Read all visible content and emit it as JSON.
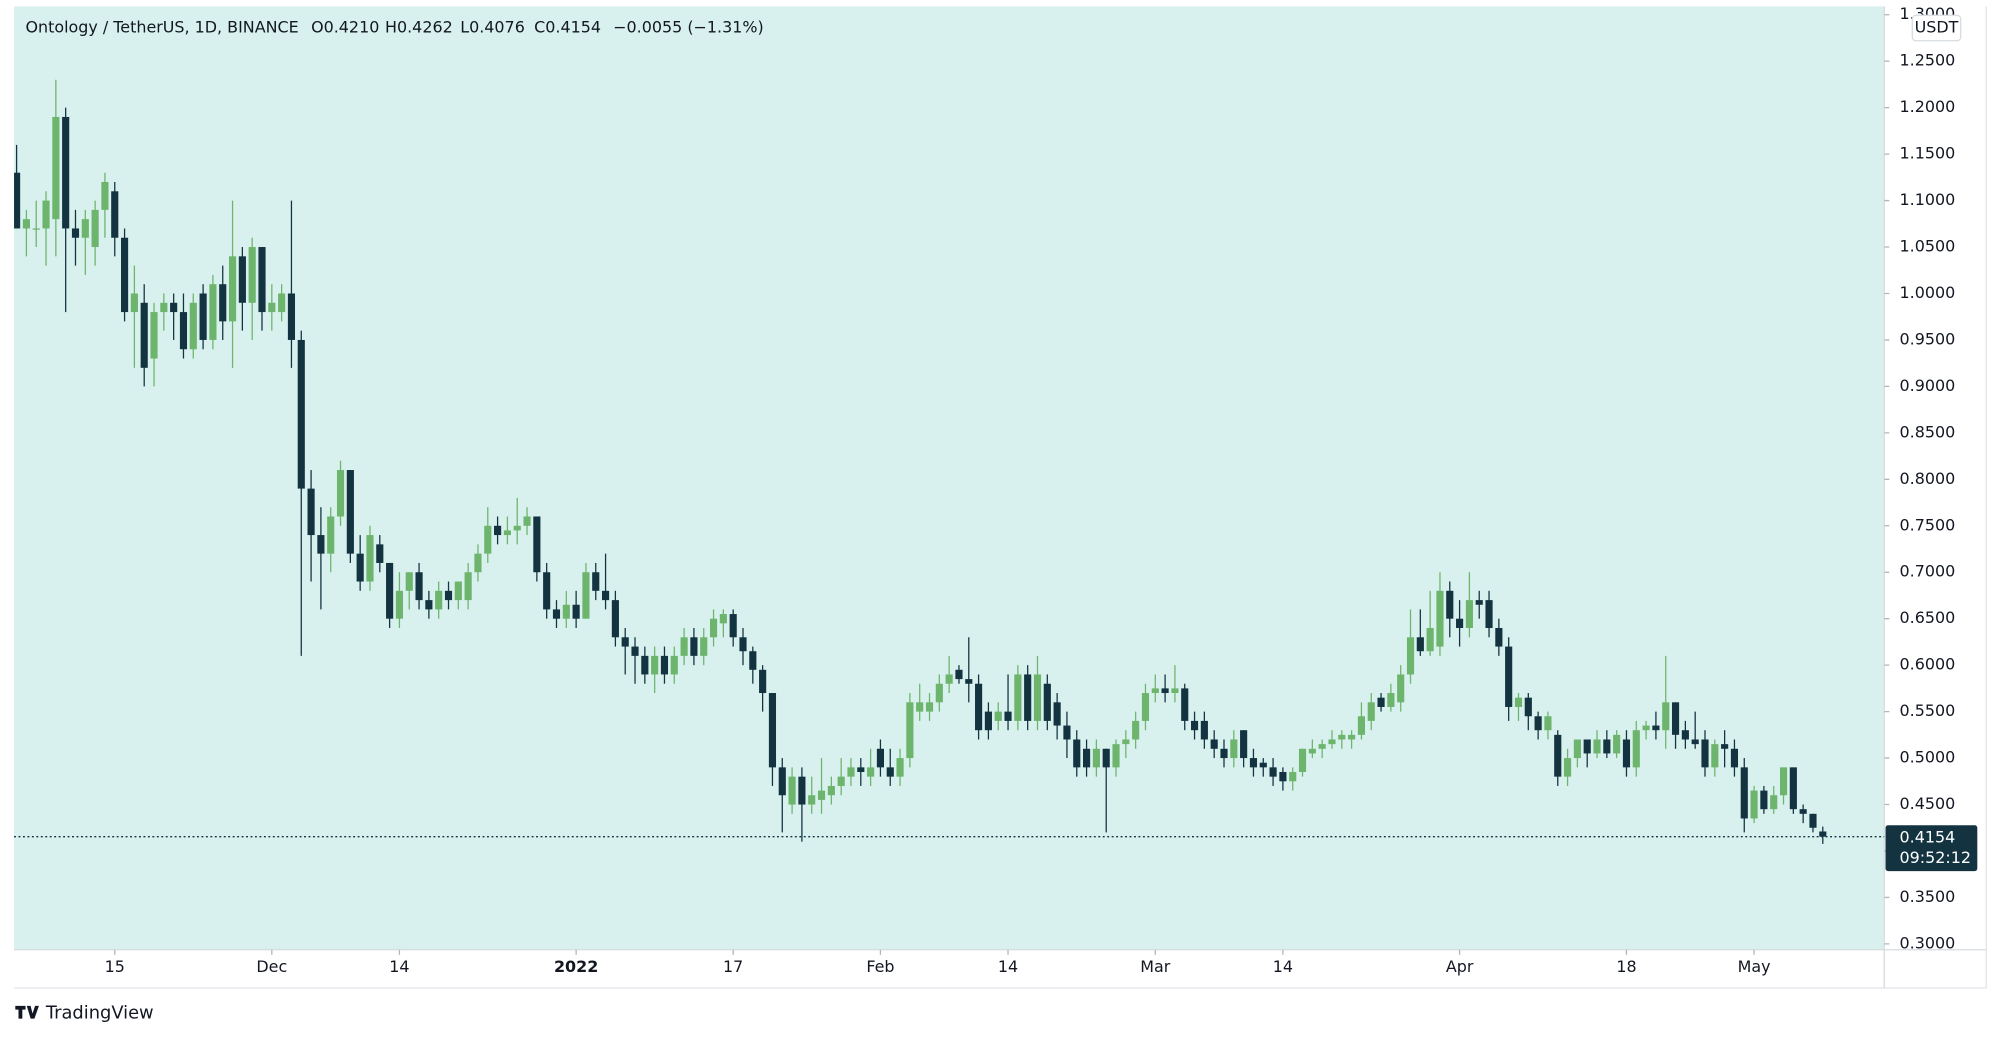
{
  "chart_data": {
    "type": "candlestick",
    "header": {
      "symbol": "Ontology / TetherUS, 1D, BINANCE",
      "open": "O0.4210",
      "high": "H0.4262",
      "low": "L0.4076",
      "close": "C0.4154",
      "change": "−0.0055 (−1.31%)"
    },
    "currency": "USDT",
    "last_price": 0.4154,
    "countdown": "09:52:12",
    "brand": "TradingView",
    "up_color": "#6db56c",
    "down_color": "#143341",
    "background": "#d8f1ee",
    "grid": false,
    "ylim": [
      0.2937,
      1.309
    ],
    "yticks": [
      {
        "value": 0.3,
        "label": "0.3000"
      },
      {
        "value": 0.35,
        "label": "0.3500"
      },
      {
        "value": 0.4,
        "label": "0.4000"
      },
      {
        "value": 0.45,
        "label": "0.4500"
      },
      {
        "value": 0.5,
        "label": "0.5000"
      },
      {
        "value": 0.55,
        "label": "0.5500"
      },
      {
        "value": 0.6,
        "label": "0.6000"
      },
      {
        "value": 0.65,
        "label": "0.6500"
      },
      {
        "value": 0.7,
        "label": "0.7000"
      },
      {
        "value": 0.75,
        "label": "0.7500"
      },
      {
        "value": 0.8,
        "label": "0.8000"
      },
      {
        "value": 0.85,
        "label": "0.8500"
      },
      {
        "value": 0.9,
        "label": "0.9000"
      },
      {
        "value": 0.95,
        "label": "0.9500"
      },
      {
        "value": 1.0,
        "label": "1.0000"
      },
      {
        "value": 1.05,
        "label": "1.0500"
      },
      {
        "value": 1.1,
        "label": "1.1000"
      },
      {
        "value": 1.15,
        "label": "1.1500"
      },
      {
        "value": 1.2,
        "label": "1.2000"
      },
      {
        "value": 1.25,
        "label": "1.2500"
      },
      {
        "value": 1.3,
        "label": "1.3000"
      }
    ],
    "xticks": [
      {
        "value": 10,
        "label": "15"
      },
      {
        "value": 26,
        "label": "Dec"
      },
      {
        "value": 39,
        "label": "14"
      },
      {
        "value": 57,
        "label": "2022"
      },
      {
        "value": 73,
        "label": "17"
      },
      {
        "value": 88,
        "label": "Feb"
      },
      {
        "value": 101,
        "label": "14"
      },
      {
        "value": 116,
        "label": "Mar"
      },
      {
        "value": 129,
        "label": "14"
      },
      {
        "value": 147,
        "label": "Apr"
      },
      {
        "value": 164,
        "label": "18"
      },
      {
        "value": 177,
        "label": "May"
      }
    ],
    "candles": [
      [
        1.13,
        1.16,
        1.07,
        1.07
      ],
      [
        1.07,
        1.09,
        1.04,
        1.08
      ],
      [
        1.07,
        1.1,
        1.05,
        1.07
      ],
      [
        1.07,
        1.11,
        1.03,
        1.1
      ],
      [
        1.08,
        1.23,
        1.04,
        1.19
      ],
      [
        1.19,
        1.2,
        0.98,
        1.07
      ],
      [
        1.07,
        1.09,
        1.03,
        1.06
      ],
      [
        1.06,
        1.09,
        1.02,
        1.08
      ],
      [
        1.05,
        1.1,
        1.03,
        1.09
      ],
      [
        1.09,
        1.13,
        1.06,
        1.12
      ],
      [
        1.11,
        1.12,
        1.04,
        1.06
      ],
      [
        1.06,
        1.07,
        0.97,
        0.98
      ],
      [
        0.98,
        1.03,
        0.92,
        1.0
      ],
      [
        0.99,
        1.01,
        0.9,
        0.92
      ],
      [
        0.93,
        0.99,
        0.9,
        0.98
      ],
      [
        0.98,
        1.0,
        0.96,
        0.99
      ],
      [
        0.99,
        1.0,
        0.95,
        0.98
      ],
      [
        0.98,
        1.0,
        0.93,
        0.94
      ],
      [
        0.94,
        1.0,
        0.93,
        0.99
      ],
      [
        1.0,
        1.01,
        0.94,
        0.95
      ],
      [
        0.95,
        1.02,
        0.94,
        1.01
      ],
      [
        1.01,
        1.03,
        0.95,
        0.97
      ],
      [
        0.97,
        1.1,
        0.92,
        1.04
      ],
      [
        1.04,
        1.05,
        0.96,
        0.99
      ],
      [
        0.99,
        1.06,
        0.95,
        1.05
      ],
      [
        1.05,
        1.05,
        0.96,
        0.98
      ],
      [
        0.98,
        1.01,
        0.96,
        0.99
      ],
      [
        0.98,
        1.01,
        0.97,
        1.0
      ],
      [
        1.0,
        1.1,
        0.92,
        0.95
      ],
      [
        0.95,
        0.96,
        0.61,
        0.79
      ],
      [
        0.79,
        0.81,
        0.69,
        0.74
      ],
      [
        0.74,
        0.77,
        0.66,
        0.72
      ],
      [
        0.72,
        0.77,
        0.7,
        0.76
      ],
      [
        0.76,
        0.82,
        0.75,
        0.81
      ],
      [
        0.81,
        0.81,
        0.71,
        0.72
      ],
      [
        0.72,
        0.74,
        0.68,
        0.69
      ],
      [
        0.69,
        0.75,
        0.68,
        0.74
      ],
      [
        0.73,
        0.74,
        0.7,
        0.71
      ],
      [
        0.71,
        0.71,
        0.64,
        0.65
      ],
      [
        0.65,
        0.7,
        0.64,
        0.68
      ],
      [
        0.68,
        0.7,
        0.66,
        0.7
      ],
      [
        0.7,
        0.71,
        0.66,
        0.67
      ],
      [
        0.67,
        0.68,
        0.65,
        0.66
      ],
      [
        0.66,
        0.69,
        0.65,
        0.68
      ],
      [
        0.68,
        0.69,
        0.66,
        0.67
      ],
      [
        0.67,
        0.69,
        0.66,
        0.69
      ],
      [
        0.67,
        0.71,
        0.66,
        0.7
      ],
      [
        0.7,
        0.73,
        0.69,
        0.72
      ],
      [
        0.72,
        0.77,
        0.71,
        0.75
      ],
      [
        0.75,
        0.76,
        0.73,
        0.74
      ],
      [
        0.74,
        0.76,
        0.73,
        0.745
      ],
      [
        0.745,
        0.78,
        0.73,
        0.75
      ],
      [
        0.75,
        0.77,
        0.74,
        0.76
      ],
      [
        0.76,
        0.76,
        0.69,
        0.7
      ],
      [
        0.7,
        0.71,
        0.65,
        0.66
      ],
      [
        0.66,
        0.67,
        0.64,
        0.65
      ],
      [
        0.65,
        0.68,
        0.64,
        0.665
      ],
      [
        0.665,
        0.68,
        0.64,
        0.65
      ],
      [
        0.65,
        0.71,
        0.65,
        0.7
      ],
      [
        0.7,
        0.71,
        0.67,
        0.68
      ],
      [
        0.68,
        0.72,
        0.66,
        0.67
      ],
      [
        0.67,
        0.68,
        0.62,
        0.63
      ],
      [
        0.63,
        0.64,
        0.59,
        0.62
      ],
      [
        0.62,
        0.63,
        0.58,
        0.61
      ],
      [
        0.61,
        0.62,
        0.58,
        0.59
      ],
      [
        0.59,
        0.62,
        0.57,
        0.61
      ],
      [
        0.61,
        0.62,
        0.58,
        0.59
      ],
      [
        0.59,
        0.62,
        0.58,
        0.61
      ],
      [
        0.61,
        0.64,
        0.6,
        0.63
      ],
      [
        0.63,
        0.64,
        0.6,
        0.61
      ],
      [
        0.61,
        0.64,
        0.6,
        0.63
      ],
      [
        0.63,
        0.66,
        0.62,
        0.65
      ],
      [
        0.645,
        0.66,
        0.63,
        0.655
      ],
      [
        0.655,
        0.66,
        0.62,
        0.63
      ],
      [
        0.63,
        0.64,
        0.6,
        0.615
      ],
      [
        0.615,
        0.62,
        0.58,
        0.595
      ],
      [
        0.595,
        0.6,
        0.55,
        0.57
      ],
      [
        0.57,
        0.57,
        0.47,
        0.49
      ],
      [
        0.49,
        0.5,
        0.42,
        0.46
      ],
      [
        0.45,
        0.49,
        0.44,
        0.48
      ],
      [
        0.48,
        0.49,
        0.41,
        0.45
      ],
      [
        0.45,
        0.48,
        0.44,
        0.46
      ],
      [
        0.455,
        0.5,
        0.44,
        0.465
      ],
      [
        0.46,
        0.48,
        0.45,
        0.47
      ],
      [
        0.47,
        0.5,
        0.46,
        0.48
      ],
      [
        0.48,
        0.5,
        0.47,
        0.49
      ],
      [
        0.49,
        0.5,
        0.47,
        0.485
      ],
      [
        0.48,
        0.51,
        0.47,
        0.49
      ],
      [
        0.51,
        0.52,
        0.48,
        0.49
      ],
      [
        0.49,
        0.51,
        0.47,
        0.48
      ],
      [
        0.48,
        0.51,
        0.47,
        0.5
      ],
      [
        0.5,
        0.57,
        0.49,
        0.56
      ],
      [
        0.55,
        0.58,
        0.54,
        0.56
      ],
      [
        0.55,
        0.57,
        0.54,
        0.56
      ],
      [
        0.56,
        0.59,
        0.55,
        0.58
      ],
      [
        0.58,
        0.61,
        0.57,
        0.59
      ],
      [
        0.595,
        0.6,
        0.58,
        0.585
      ],
      [
        0.585,
        0.63,
        0.56,
        0.58
      ],
      [
        0.58,
        0.59,
        0.52,
        0.53
      ],
      [
        0.55,
        0.56,
        0.52,
        0.53
      ],
      [
        0.54,
        0.56,
        0.53,
        0.55
      ],
      [
        0.55,
        0.59,
        0.53,
        0.54
      ],
      [
        0.54,
        0.6,
        0.53,
        0.59
      ],
      [
        0.59,
        0.6,
        0.53,
        0.54
      ],
      [
        0.54,
        0.61,
        0.53,
        0.59
      ],
      [
        0.58,
        0.59,
        0.53,
        0.54
      ],
      [
        0.56,
        0.57,
        0.52,
        0.535
      ],
      [
        0.535,
        0.55,
        0.5,
        0.52
      ],
      [
        0.52,
        0.53,
        0.48,
        0.49
      ],
      [
        0.51,
        0.52,
        0.48,
        0.49
      ],
      [
        0.49,
        0.52,
        0.48,
        0.51
      ],
      [
        0.51,
        0.51,
        0.42,
        0.49
      ],
      [
        0.49,
        0.52,
        0.48,
        0.515
      ],
      [
        0.515,
        0.53,
        0.5,
        0.52
      ],
      [
        0.52,
        0.55,
        0.51,
        0.54
      ],
      [
        0.54,
        0.58,
        0.53,
        0.57
      ],
      [
        0.57,
        0.59,
        0.56,
        0.575
      ],
      [
        0.575,
        0.59,
        0.56,
        0.57
      ],
      [
        0.57,
        0.6,
        0.56,
        0.575
      ],
      [
        0.575,
        0.58,
        0.53,
        0.54
      ],
      [
        0.54,
        0.55,
        0.52,
        0.53
      ],
      [
        0.54,
        0.55,
        0.51,
        0.52
      ],
      [
        0.52,
        0.53,
        0.5,
        0.51
      ],
      [
        0.51,
        0.52,
        0.49,
        0.5
      ],
      [
        0.5,
        0.53,
        0.49,
        0.52
      ],
      [
        0.53,
        0.53,
        0.49,
        0.5
      ],
      [
        0.5,
        0.51,
        0.48,
        0.49
      ],
      [
        0.495,
        0.5,
        0.48,
        0.49
      ],
      [
        0.49,
        0.5,
        0.47,
        0.48
      ],
      [
        0.485,
        0.49,
        0.465,
        0.475
      ],
      [
        0.475,
        0.49,
        0.465,
        0.485
      ],
      [
        0.485,
        0.51,
        0.48,
        0.51
      ],
      [
        0.505,
        0.52,
        0.5,
        0.51
      ],
      [
        0.51,
        0.52,
        0.5,
        0.515
      ],
      [
        0.515,
        0.53,
        0.51,
        0.52
      ],
      [
        0.52,
        0.53,
        0.51,
        0.525
      ],
      [
        0.52,
        0.53,
        0.51,
        0.525
      ],
      [
        0.525,
        0.56,
        0.52,
        0.545
      ],
      [
        0.54,
        0.57,
        0.53,
        0.56
      ],
      [
        0.565,
        0.57,
        0.55,
        0.555
      ],
      [
        0.555,
        0.58,
        0.55,
        0.57
      ],
      [
        0.56,
        0.6,
        0.55,
        0.59
      ],
      [
        0.59,
        0.66,
        0.58,
        0.63
      ],
      [
        0.63,
        0.66,
        0.61,
        0.615
      ],
      [
        0.615,
        0.68,
        0.61,
        0.64
      ],
      [
        0.62,
        0.7,
        0.61,
        0.68
      ],
      [
        0.68,
        0.69,
        0.63,
        0.65
      ],
      [
        0.65,
        0.67,
        0.62,
        0.64
      ],
      [
        0.64,
        0.7,
        0.63,
        0.67
      ],
      [
        0.67,
        0.68,
        0.65,
        0.665
      ],
      [
        0.67,
        0.68,
        0.63,
        0.64
      ],
      [
        0.64,
        0.65,
        0.61,
        0.62
      ],
      [
        0.62,
        0.63,
        0.54,
        0.555
      ],
      [
        0.555,
        0.57,
        0.54,
        0.565
      ],
      [
        0.565,
        0.57,
        0.53,
        0.545
      ],
      [
        0.545,
        0.55,
        0.52,
        0.53
      ],
      [
        0.53,
        0.55,
        0.52,
        0.545
      ],
      [
        0.525,
        0.53,
        0.47,
        0.48
      ],
      [
        0.48,
        0.51,
        0.47,
        0.5
      ],
      [
        0.5,
        0.52,
        0.49,
        0.52
      ],
      [
        0.52,
        0.52,
        0.49,
        0.505
      ],
      [
        0.505,
        0.53,
        0.5,
        0.52
      ],
      [
        0.52,
        0.53,
        0.5,
        0.505
      ],
      [
        0.505,
        0.53,
        0.5,
        0.525
      ],
      [
        0.52,
        0.53,
        0.48,
        0.49
      ],
      [
        0.49,
        0.54,
        0.48,
        0.53
      ],
      [
        0.53,
        0.54,
        0.52,
        0.535
      ],
      [
        0.535,
        0.55,
        0.52,
        0.53
      ],
      [
        0.53,
        0.61,
        0.51,
        0.56
      ],
      [
        0.56,
        0.56,
        0.51,
        0.525
      ],
      [
        0.53,
        0.54,
        0.51,
        0.52
      ],
      [
        0.52,
        0.55,
        0.51,
        0.515
      ],
      [
        0.52,
        0.53,
        0.48,
        0.49
      ],
      [
        0.49,
        0.52,
        0.48,
        0.515
      ],
      [
        0.515,
        0.53,
        0.49,
        0.51
      ],
      [
        0.51,
        0.52,
        0.48,
        0.49
      ],
      [
        0.49,
        0.5,
        0.42,
        0.435
      ],
      [
        0.435,
        0.47,
        0.43,
        0.465
      ],
      [
        0.465,
        0.47,
        0.44,
        0.445
      ],
      [
        0.445,
        0.47,
        0.44,
        0.46
      ],
      [
        0.46,
        0.49,
        0.45,
        0.49
      ],
      [
        0.49,
        0.49,
        0.44,
        0.445
      ],
      [
        0.445,
        0.45,
        0.43,
        0.44
      ],
      [
        0.44,
        0.44,
        0.42,
        0.425
      ],
      [
        0.421,
        0.4262,
        0.4076,
        0.4154
      ]
    ]
  }
}
